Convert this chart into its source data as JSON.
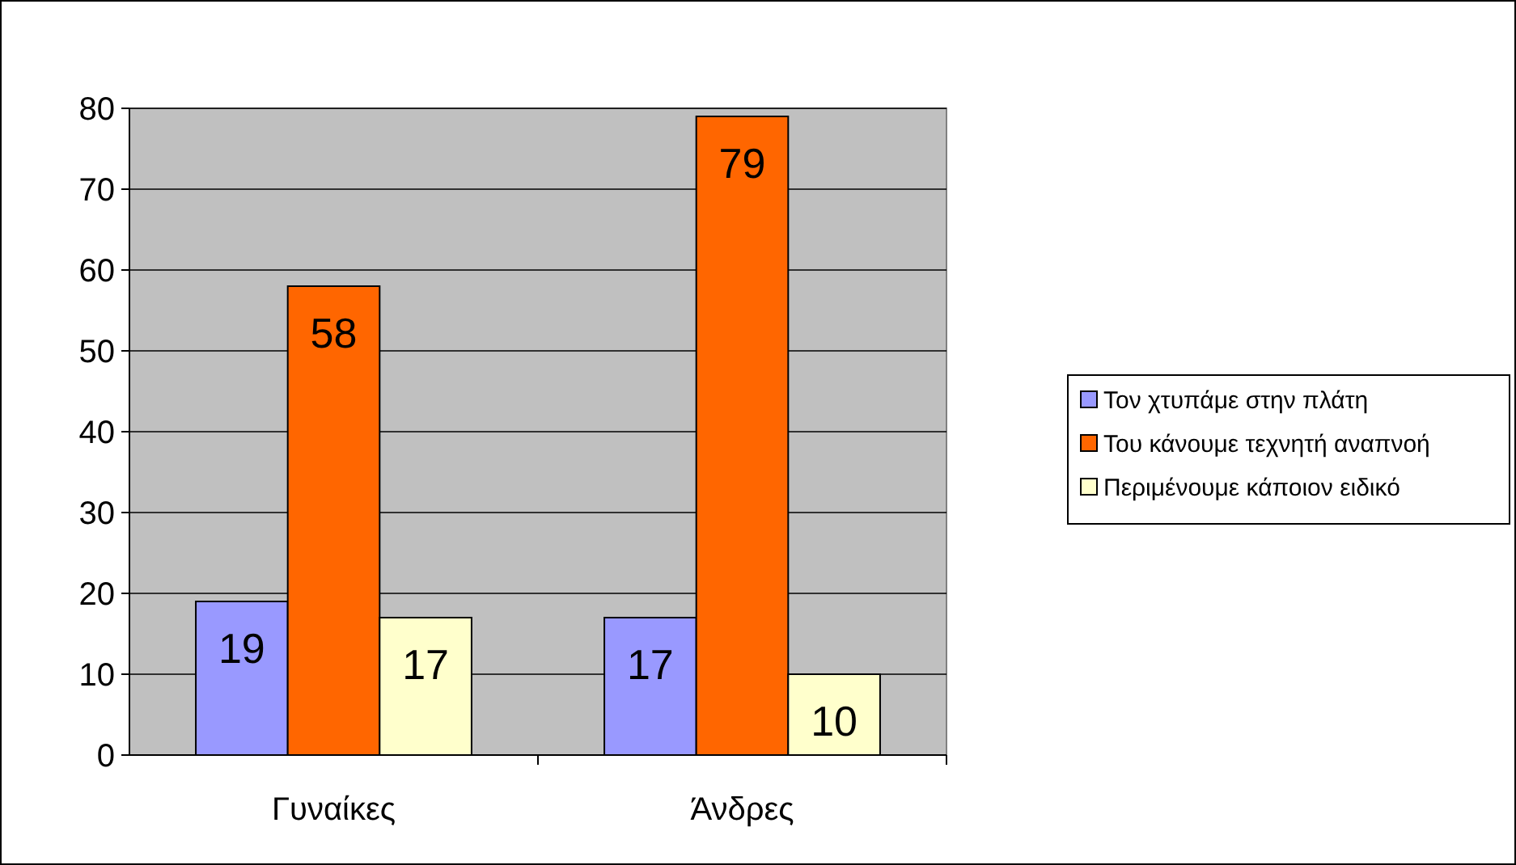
{
  "chart_data": {
    "type": "bar",
    "categories": [
      "Γυναίκες",
      "Άνδρες"
    ],
    "series": [
      {
        "name": "Τον χτυπάμε στην πλάτη",
        "color": "#9999ff",
        "values": [
          19,
          17
        ]
      },
      {
        "name": "Του κάνουμε τεχνητή αναπνοή",
        "color": "#ff6600",
        "values": [
          58,
          79
        ]
      },
      {
        "name": "Περιμένουμε κάποιον ειδικό",
        "color": "#ffffcc",
        "values": [
          17,
          10
        ]
      }
    ],
    "ylim": [
      0,
      80
    ],
    "yticks": [
      0,
      10,
      20,
      30,
      40,
      50,
      60,
      70,
      80
    ],
    "grid": "y",
    "legend": "right",
    "data_labels": true
  }
}
